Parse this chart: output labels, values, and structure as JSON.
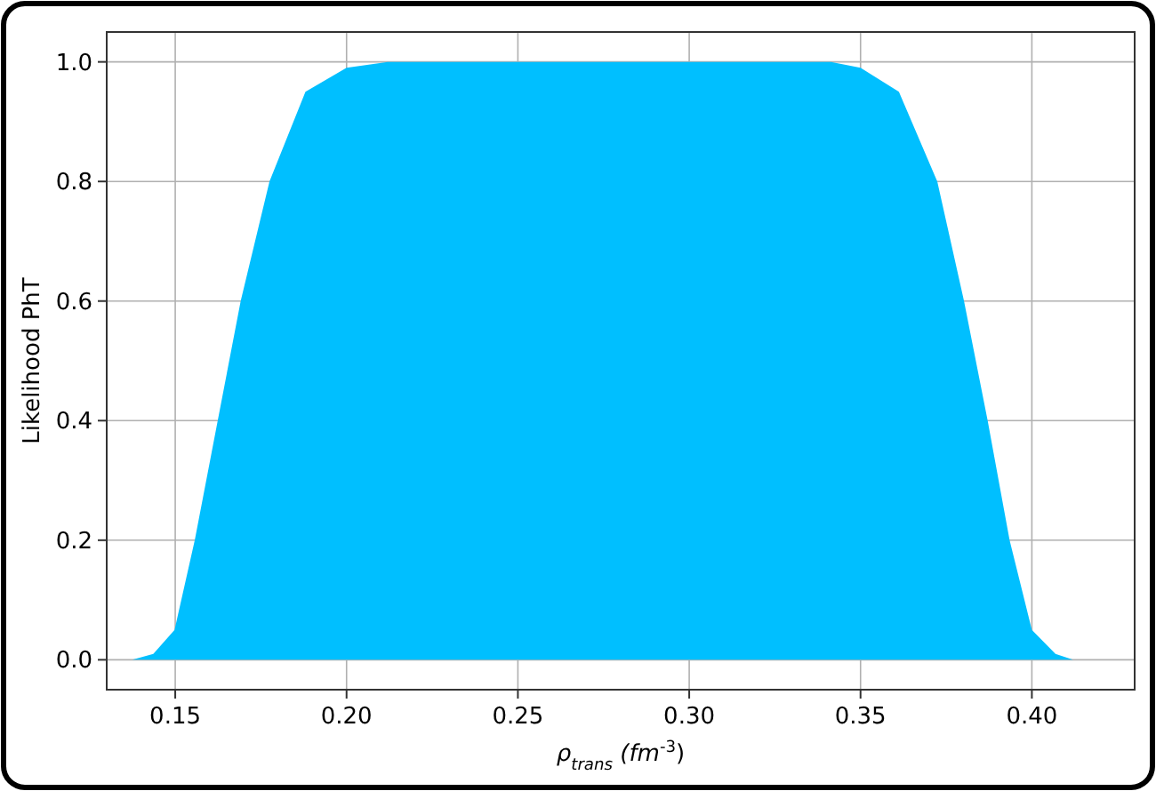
{
  "chart_data": {
    "type": "area",
    "xlabel": "ρ$_{trans}$ (fm$^{-3}$)",
    "ylabel": "Likelihood PhT",
    "x": [
      0.13,
      0.1375,
      0.1436,
      0.1498,
      0.1557,
      0.1624,
      0.1691,
      0.1775,
      0.188,
      0.2,
      0.212,
      0.25,
      0.3,
      0.3414,
      0.35,
      0.3612,
      0.3724,
      0.3802,
      0.3871,
      0.3935,
      0.4,
      0.4069,
      0.412,
      0.43
    ],
    "series": [
      {
        "color": "#00bfff",
        "values": [
          0,
          0,
          0.01,
          0.05,
          0.2,
          0.4,
          0.6,
          0.8,
          0.95,
          0.99,
          1,
          1,
          1,
          1,
          0.99,
          0.95,
          0.8,
          0.6,
          0.4,
          0.2,
          0.05,
          0.01,
          0,
          0
        ]
      }
    ],
    "xlim": [
      0.13,
      0.43
    ],
    "ylim": [
      -0.05,
      1.05
    ],
    "xticks": [
      {
        "value": 0.15,
        "label": "0.15"
      },
      {
        "value": 0.2,
        "label": "0.20"
      },
      {
        "value": 0.25,
        "label": "0.25"
      },
      {
        "value": 0.3,
        "label": "0.30"
      },
      {
        "value": 0.35,
        "label": "0.35"
      },
      {
        "value": 0.4,
        "label": "0.40"
      }
    ],
    "yticks": [
      {
        "value": 0,
        "label": "0.0"
      },
      {
        "value": 0.2,
        "label": "0.2"
      },
      {
        "value": 0.4,
        "label": "0.4"
      },
      {
        "value": 0.6,
        "label": "0.6"
      },
      {
        "value": 0.8,
        "label": "0.8"
      },
      {
        "value": 1,
        "label": "1.0"
      }
    ],
    "grid": true
  }
}
